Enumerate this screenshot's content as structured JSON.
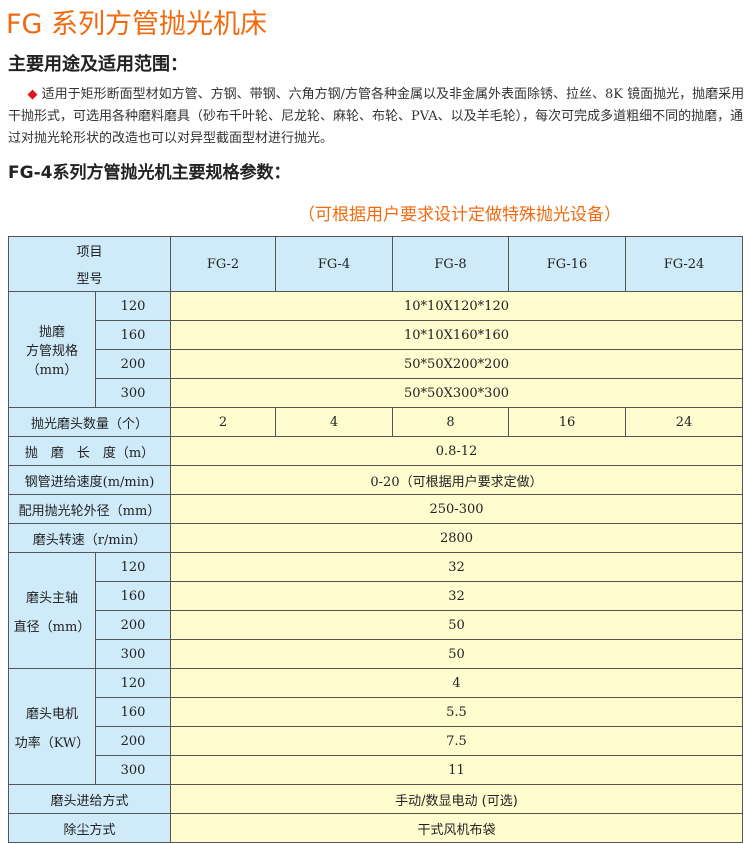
{
  "title": "FG 系列方管抛光机床",
  "usage_heading": "主要用途及适用范围：",
  "usage_bullet": "◆",
  "usage_text": "适用于矩形断面型材如方管、方钢、带钢、六角方钢/方管各种金属以及非金属外表面除锈、拉丝、8K 镜面抛光，抛磨采用干抛形式，可选用各种磨料磨具（砂布千叶轮、尼龙轮、麻轮、布轮、PVA、以及羊毛轮），每次可完成多道粗细不同的抛磨，通过对抛光轮形状的改造也可以对异型截面型材进行抛光。",
  "spec_heading": "FG-4系列方管抛光机主要规格参数：",
  "custom_note": "（可根据用户要求设计定做特殊抛光设备）",
  "table": {
    "header_item": "项目",
    "header_model": "型号",
    "models": [
      "FG-2",
      "FG-4",
      "FG-8",
      "FG-16",
      "FG-24"
    ],
    "tube_label": [
      "抛磨",
      "方管规格",
      "（mm）"
    ],
    "tube_sizes": [
      "120",
      "160",
      "200",
      "300"
    ],
    "tube_values": [
      "10*10X120*120",
      "10*10X160*160",
      "50*50X200*200",
      "50*50X300*300"
    ],
    "heads_label": "抛光磨头数量（个）",
    "heads_values": [
      "2",
      "4",
      "8",
      "16",
      "24"
    ],
    "length_label": "抛　磨　长　度（m）",
    "length_value": "0.8-12",
    "speed_label": "钢管进给速度(m/min)",
    "speed_value": "0-20（可根据用户要求定做）",
    "wheel_label": "配用抛光轮外径（mm）",
    "wheel_value": "250-300",
    "rpm_label": "磨头转速（r/min）",
    "rpm_value": "2800",
    "spindle_label": [
      "磨头主轴",
      "直径（mm）"
    ],
    "spindle_sizes": [
      "120",
      "160",
      "200",
      "300"
    ],
    "spindle_values": [
      "32",
      "32",
      "50",
      "50"
    ],
    "power_label": [
      "磨头电机",
      "功率（KW）"
    ],
    "power_sizes": [
      "120",
      "160",
      "200",
      "300"
    ],
    "power_values": [
      "4",
      "5.5",
      "7.5",
      "11"
    ],
    "feed_label": "磨头进给方式",
    "feed_value": "手动/数显电动 (可选)",
    "dust_label": "除尘方式",
    "dust_value": "干式风机布袋"
  }
}
